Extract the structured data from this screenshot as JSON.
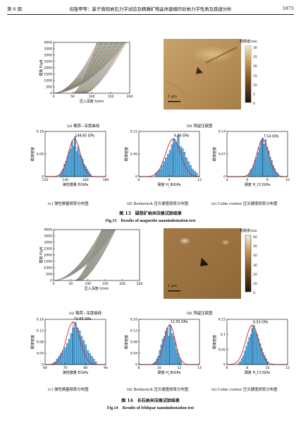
{
  "header": {
    "issue": "第 6 期",
    "title": "倪锟甲等：基于微观岩石力学试验及精确矿物晶体建模的砂岩力学性质及跳速分析",
    "page": "1873"
  },
  "figures": [
    {
      "number_cn": "图 13　磁铁矿纳米压痕试验结果",
      "number_en": "Fig.13　Results of magnetite nanoindentation test",
      "curve_caption": "(a)  载荷−深度曲线",
      "map_caption": "(b)  残留压痕图",
      "scalebar": "1 μm",
      "colorbar_title": "粗糙度/nm",
      "colorbar_ticks": [
        "30",
        "25",
        "20",
        "15",
        "10",
        "5",
        "0"
      ],
      "hist_captions": [
        "(c)  弹性模量频率分布图",
        "(d) Berkovich 压头硬度频率分布图",
        "(e) Cube corner 压头硬度频率分布图"
      ]
    },
    {
      "number_cn": "图 14　长石纳米压痕试验结果",
      "number_en": "Fig.14　Results of feldspar nanoindentation test",
      "curve_caption": "(a)  载荷−深度曲线",
      "map_caption": "(b)  残留压痕图",
      "scalebar": "1 μm",
      "colorbar_title": "粗糙度/nm",
      "colorbar_ticks": [
        "60",
        "50",
        "40",
        "30",
        "20",
        "10",
        "0"
      ],
      "hist_captions": [
        "(c)  弹性模量频率分布图",
        "(d) Berkovich 压头硬度频率分布图",
        "(e) Cube corner 压头硬度频率分布图"
      ]
    }
  ],
  "chart_data": [
    {
      "type": "line",
      "id": "fig13a",
      "xlabel": "压入深度 h/nm",
      "ylabel": "载荷 P/μN",
      "xlim": [
        0,
        200
      ],
      "ylim": [
        0,
        4000
      ],
      "xticks": [
        0,
        50,
        100,
        150,
        200
      ],
      "yticks": [
        0,
        500,
        1000,
        1500,
        2000,
        2500,
        3000,
        3500,
        4000
      ],
      "curves": {
        "count": 40,
        "max_load": 4000,
        "depth_range_at_max": [
          115,
          190
        ],
        "colors": [
          "#3a6fc4",
          "#d04a3a",
          "#e3b33a",
          "#5a9e4a",
          "#8a5ab0",
          "#3aa6b0",
          "#8d8d2a"
        ]
      }
    },
    {
      "type": "bar",
      "id": "fig13c",
      "xlabel": "弹性模量 E/GPa",
      "ylabel": "概率密度",
      "xlim": [
        120,
        180
      ],
      "ylim": [
        0,
        0.18
      ],
      "xticks": [
        120,
        140,
        160,
        180
      ],
      "yticks": [
        0,
        0.09,
        0.18
      ],
      "bin_start": 134,
      "bin_width": 1.5,
      "values": [
        0.01,
        0.02,
        0.03,
        0.05,
        0.06,
        0.08,
        0.1,
        0.11,
        0.14,
        0.12,
        0.16,
        0.1,
        0.12,
        0.09,
        0.08,
        0.07,
        0.05,
        0.04,
        0.03,
        0.02,
        0.01
      ],
      "fit_mean": 148.85,
      "fit_sd": 6.0,
      "fit_peak": 0.15,
      "annotation": "148.85 GPa"
    },
    {
      "type": "bar",
      "id": "fig13d",
      "xlabel": "硬度 H_B/GPa",
      "ylabel": "概率密度",
      "xlim": [
        6,
        12
      ],
      "ylim": [
        0,
        0.12
      ],
      "xticks": [
        6,
        9,
        12
      ],
      "yticks": [
        0,
        0.06,
        0.12
      ],
      "bin_start": 7.6,
      "bin_width": 0.2,
      "values": [
        0.01,
        0.015,
        0.02,
        0.03,
        0.04,
        0.05,
        0.06,
        0.07,
        0.085,
        0.1,
        0.09,
        0.11,
        0.08,
        0.075,
        0.065,
        0.05,
        0.04,
        0.03,
        0.02,
        0.015,
        0.01
      ],
      "fit_mean": 9.39,
      "fit_sd": 0.75,
      "fit_peak": 0.1,
      "annotation": "9.39 GPa"
    },
    {
      "type": "bar",
      "id": "fig13e",
      "xlabel": "硬度 H_CC/GPa",
      "ylabel": "概率密度",
      "xlim": [
        4,
        10
      ],
      "ylim": [
        0,
        0.14
      ],
      "xticks": [
        4,
        6,
        8,
        10
      ],
      "yticks": [
        0,
        0.07,
        0.14
      ],
      "bin_start": 6.1,
      "bin_width": 0.15,
      "values": [
        0.01,
        0.02,
        0.025,
        0.035,
        0.05,
        0.06,
        0.075,
        0.09,
        0.11,
        0.12,
        0.1,
        0.115,
        0.09,
        0.08,
        0.06,
        0.05,
        0.035,
        0.025,
        0.015,
        0.01
      ],
      "fit_mean": 7.54,
      "fit_sd": 0.6,
      "fit_peak": 0.115,
      "annotation": "7.54 GPa"
    },
    {
      "type": "line",
      "id": "fig14a",
      "xlabel": "压入深度 h/nm",
      "ylabel": "载荷 P/μN",
      "xlim": [
        0,
        250
      ],
      "ylim": [
        0,
        4000
      ],
      "xticks": [
        0,
        50,
        100,
        150,
        200,
        250
      ],
      "yticks": [
        0,
        500,
        1000,
        1500,
        2000,
        2500,
        3000,
        3500,
        4000
      ],
      "curves": {
        "count": 40,
        "max_load": 4000,
        "depth_range_at_max": [
          140,
          180
        ],
        "colors": [
          "#9a9a8a",
          "#8a8a7a",
          "#7d8a98",
          "#a09070",
          "#6a7a8a",
          "#b0a890"
        ]
      }
    },
    {
      "type": "bar",
      "id": "fig14c",
      "xlabel": "弹性模量 E/GPa",
      "ylabel": "概率密度",
      "xlim": [
        60,
        90
      ],
      "ylim": [
        0,
        0.16
      ],
      "xticks": [
        60,
        70,
        80,
        90
      ],
      "yticks": [
        0,
        0.04,
        0.08,
        0.12,
        0.16
      ],
      "bin_start": 63.5,
      "bin_width": 1.0,
      "values": [
        0.005,
        0.01,
        0.02,
        0.03,
        0.04,
        0.05,
        0.06,
        0.075,
        0.09,
        0.11,
        0.13,
        0.15,
        0.13,
        0.12,
        0.1,
        0.085,
        0.07,
        0.05,
        0.04,
        0.03,
        0.02,
        0.01
      ],
      "fit_mean": 73.83,
      "fit_sd": 3.4,
      "fit_peak": 0.15,
      "annotation": "73.83 GPa"
    },
    {
      "type": "bar",
      "id": "fig14d",
      "xlabel": "硬度 H_B/GPa",
      "ylabel": "概率密度",
      "xlim": [
        8,
        14
      ],
      "ylim": [
        0,
        0.16
      ],
      "xticks": [
        8,
        10,
        12,
        14
      ],
      "yticks": [
        0,
        0.04,
        0.08,
        0.12,
        0.16
      ],
      "bin_start": 9.4,
      "bin_width": 0.15,
      "values": [
        0.005,
        0.01,
        0.02,
        0.03,
        0.05,
        0.07,
        0.09,
        0.1,
        0.12,
        0.13,
        0.1,
        0.14,
        0.11,
        0.1,
        0.08,
        0.055,
        0.04,
        0.025,
        0.015
      ],
      "fit_mean": 11.05,
      "fit_sd": 0.55,
      "fit_peak": 0.14,
      "annotation": "11.05 GPa"
    },
    {
      "type": "bar",
      "id": "fig14e",
      "xlabel": "硬度 H_CC/GPa",
      "ylabel": "概率密度",
      "xlim": [
        6,
        12
      ],
      "ylim": [
        0,
        0.15
      ],
      "xticks": [
        6,
        8,
        10,
        12
      ],
      "yticks": [
        0,
        0.05,
        0.1,
        0.15
      ],
      "bin_start": 7.1,
      "bin_width": 0.15,
      "values": [
        0.005,
        0.01,
        0.02,
        0.03,
        0.045,
        0.06,
        0.075,
        0.09,
        0.1,
        0.12,
        0.13,
        0.11,
        0.1,
        0.085,
        0.07,
        0.055,
        0.04,
        0.03,
        0.02,
        0.01
      ],
      "fit_mean": 8.5,
      "fit_sd": 0.65,
      "fit_peak": 0.13,
      "annotation": "8.50 GPa"
    }
  ]
}
